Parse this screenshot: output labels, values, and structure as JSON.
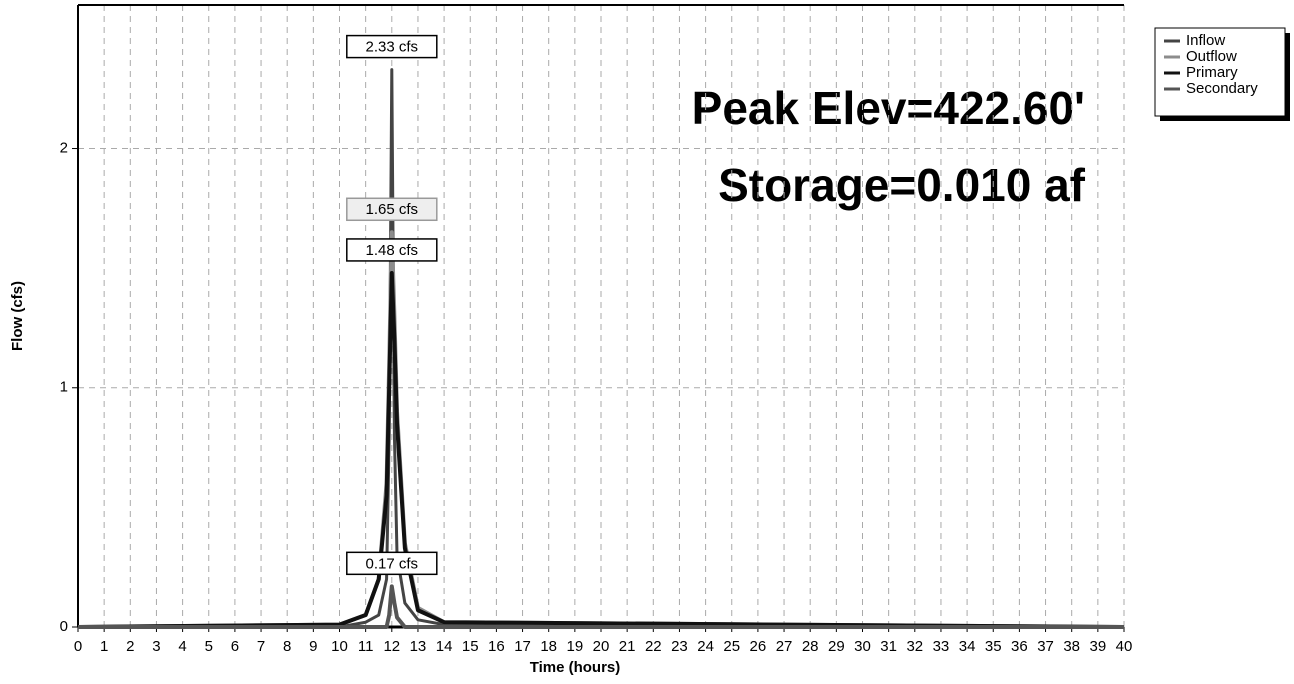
{
  "chart_data": {
    "type": "line",
    "ylabel": "Flow  (cfs)",
    "xlabel": "Time  (hours)",
    "annotations": [
      "Peak Elev=422.60'",
      "Storage=0.010 af"
    ],
    "x": [
      0,
      10,
      11,
      11.5,
      11.8,
      11.9,
      12,
      12.1,
      12.2,
      12.5,
      13,
      14,
      40
    ],
    "series": [
      {
        "name": "Inflow",
        "color": "#444444",
        "values": [
          0,
          0,
          0.02,
          0.05,
          0.2,
          0.8,
          2.33,
          0.8,
          0.3,
          0.1,
          0.03,
          0.01,
          0
        ],
        "value_labels": [
          null,
          null,
          null,
          null,
          null,
          null,
          "2.33 cfs",
          null,
          null,
          null,
          null,
          null,
          null
        ]
      },
      {
        "name": "Outflow",
        "color": "#8c8c8c",
        "values": [
          0,
          0.01,
          0.05,
          0.2,
          0.6,
          1.1,
          1.65,
          1.3,
          0.9,
          0.35,
          0.08,
          0.02,
          0
        ],
        "value_labels": [
          null,
          null,
          null,
          null,
          null,
          null,
          "1.65 cfs",
          null,
          null,
          null,
          null,
          null,
          null
        ]
      },
      {
        "name": "Primary",
        "color": "#111111",
        "values": [
          0,
          0.01,
          0.05,
          0.2,
          0.55,
          1.0,
          1.48,
          1.2,
          0.85,
          0.33,
          0.07,
          0.02,
          0
        ],
        "value_labels": [
          null,
          null,
          null,
          null,
          null,
          null,
          "1.48 cfs",
          null,
          null,
          null,
          null,
          null,
          null
        ]
      },
      {
        "name": "Secondary",
        "color": "#555555",
        "values": [
          0,
          0,
          0,
          0,
          0,
          0.05,
          0.17,
          0.1,
          0.04,
          0,
          0,
          0,
          0
        ],
        "value_labels": [
          null,
          null,
          null,
          null,
          null,
          null,
          "0.17 cfs",
          null,
          null,
          null,
          null,
          null,
          null
        ]
      }
    ],
    "xlim": [
      0,
      40
    ],
    "xticks": [
      0,
      1,
      2,
      3,
      4,
      5,
      6,
      7,
      8,
      9,
      10,
      11,
      12,
      13,
      14,
      15,
      16,
      17,
      18,
      19,
      20,
      21,
      22,
      23,
      24,
      25,
      26,
      27,
      28,
      29,
      30,
      31,
      32,
      33,
      34,
      35,
      36,
      37,
      38,
      39,
      40
    ],
    "ylim": [
      0,
      2.6
    ],
    "yticks": [
      0,
      1,
      2
    ],
    "grid": true,
    "legend": "upper right"
  }
}
